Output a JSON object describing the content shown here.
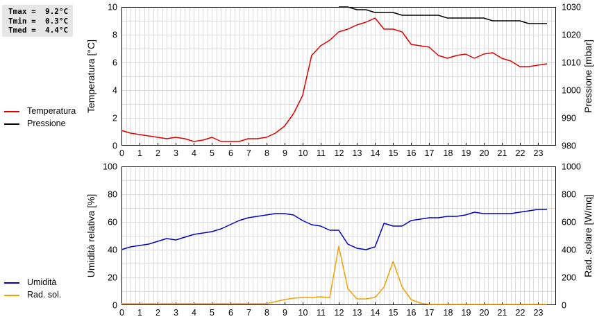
{
  "stats": {
    "lines": [
      "Tmax =  9.2°C",
      "Tmin =  0.3°C",
      "Tmed =  4.4°C"
    ]
  },
  "chart_data": [
    {
      "type": "line",
      "xlabel": "",
      "ylabel": "Temperatura [°C]",
      "y2label": "Pressione [mbar]",
      "xlim": [
        0,
        24
      ],
      "xticks": [
        "0",
        "1",
        "2",
        "3",
        "4",
        "5",
        "6",
        "7",
        "8",
        "9",
        "10",
        "11",
        "12",
        "13",
        "14",
        "15",
        "16",
        "17",
        "18",
        "19",
        "20",
        "21",
        "22",
        "23"
      ],
      "ylim": [
        0,
        10
      ],
      "yticks": [
        "0",
        "2",
        "4",
        "6",
        "8",
        "10"
      ],
      "y2lim": [
        980,
        1030
      ],
      "y2ticks": [
        "980",
        "990",
        "1000",
        "1010",
        "1020",
        "1030"
      ],
      "grid": true,
      "legend_placement": "left",
      "series": [
        {
          "name": "Temperatura",
          "color": "#dd0000",
          "axis": "left",
          "x": [
            0,
            0.5,
            1,
            1.5,
            2,
            2.5,
            3,
            3.5,
            4,
            4.5,
            5,
            5.5,
            6,
            6.5,
            7,
            7.5,
            8,
            8.5,
            9,
            9.5,
            10,
            10.5,
            11,
            11.5,
            12,
            12.5,
            13,
            13.5,
            14,
            14.5,
            15,
            15.5,
            16,
            16.5,
            17,
            17.5,
            18,
            18.5,
            19,
            19.5,
            20,
            20.5,
            21,
            21.5,
            22,
            22.5,
            23,
            23.5
          ],
          "y": [
            1.1,
            0.9,
            0.8,
            0.7,
            0.6,
            0.5,
            0.6,
            0.5,
            0.3,
            0.4,
            0.6,
            0.3,
            0.3,
            0.3,
            0.5,
            0.5,
            0.6,
            0.9,
            1.4,
            2.3,
            3.6,
            6.5,
            7.2,
            7.6,
            8.2,
            8.4,
            8.7,
            8.9,
            9.2,
            8.4,
            8.4,
            8.2,
            7.3,
            7.2,
            7.1,
            6.5,
            6.3,
            6.5,
            6.6,
            6.3,
            6.6,
            6.7,
            6.3,
            6.1,
            5.7,
            5.7,
            5.8,
            5.9
          ]
        },
        {
          "name": "Pressione",
          "color": "#000000",
          "axis": "right",
          "x": [
            12,
            12.5,
            13,
            13.5,
            14,
            14.5,
            15,
            15.5,
            16,
            16.5,
            17,
            17.5,
            18,
            18.5,
            19,
            19.5,
            20,
            20.5,
            21,
            21.5,
            22,
            22.5,
            23,
            23.5
          ],
          "y": [
            1030,
            1030,
            1029,
            1029,
            1028,
            1028,
            1028,
            1027,
            1027,
            1027,
            1027,
            1027,
            1026,
            1026,
            1026,
            1026,
            1026,
            1025,
            1025,
            1025,
            1025,
            1024,
            1024,
            1024
          ]
        }
      ]
    },
    {
      "type": "line",
      "xlabel": "",
      "ylabel": "Umidità relativa [%]",
      "y2label": "Rad. solare [W/mq]",
      "xlim": [
        0,
        24
      ],
      "xticks": [
        "0",
        "1",
        "2",
        "3",
        "4",
        "5",
        "6",
        "7",
        "8",
        "9",
        "10",
        "11",
        "12",
        "13",
        "14",
        "15",
        "16",
        "17",
        "18",
        "19",
        "20",
        "21",
        "22",
        "23"
      ],
      "ylim": [
        0,
        100
      ],
      "yticks": [
        "0",
        "20",
        "40",
        "60",
        "80",
        "100"
      ],
      "y2lim": [
        0,
        1000
      ],
      "y2ticks": [
        "0",
        "200",
        "400",
        "600",
        "800",
        "1000"
      ],
      "grid": true,
      "legend_placement": "left",
      "series": [
        {
          "name": "Umidità",
          "color": "#0000bb",
          "axis": "left",
          "x": [
            0,
            0.5,
            1,
            1.5,
            2,
            2.5,
            3,
            3.5,
            4,
            4.5,
            5,
            5.5,
            6,
            6.5,
            7,
            7.5,
            8,
            8.5,
            9,
            9.5,
            10,
            10.5,
            11,
            11.5,
            12,
            12.5,
            13,
            13.5,
            14,
            14.5,
            15,
            15.5,
            16,
            16.5,
            17,
            17.5,
            18,
            18.5,
            19,
            19.5,
            20,
            20.5,
            21,
            21.5,
            22,
            22.5,
            23,
            23.5
          ],
          "y": [
            40,
            42,
            43,
            44,
            46,
            48,
            47,
            49,
            51,
            52,
            53,
            55,
            58,
            61,
            63,
            64,
            65,
            66,
            66,
            65,
            61,
            58,
            57,
            54,
            54,
            44,
            41,
            40,
            42,
            59,
            57,
            57,
            61,
            62,
            63,
            63,
            64,
            64,
            65,
            67,
            66,
            66,
            66,
            66,
            67,
            68,
            69,
            69
          ]
        },
        {
          "name": "Rad. sol.",
          "color": "#f0a000",
          "axis": "right",
          "x": [
            0,
            0.5,
            1,
            1.5,
            2,
            2.5,
            3,
            3.5,
            4,
            4.5,
            5,
            5.5,
            6,
            6.5,
            7,
            7.5,
            8,
            8.5,
            9,
            9.5,
            10,
            10.5,
            11,
            11.5,
            12,
            12.5,
            13,
            13.5,
            14,
            14.5,
            15,
            15.5,
            16,
            16.5,
            17,
            17.5,
            18,
            18.5,
            19,
            19.5,
            20,
            20.5,
            21,
            21.5,
            22,
            22.5,
            23,
            23.5
          ],
          "y": [
            10,
            10,
            10,
            10,
            10,
            10,
            10,
            10,
            10,
            10,
            10,
            10,
            10,
            10,
            10,
            10,
            10,
            25,
            40,
            50,
            55,
            55,
            60,
            55,
            425,
            120,
            45,
            45,
            55,
            130,
            315,
            130,
            40,
            15,
            5,
            5,
            5,
            5,
            5,
            5,
            5,
            5,
            5,
            5,
            5,
            5,
            5,
            5
          ]
        }
      ]
    }
  ]
}
